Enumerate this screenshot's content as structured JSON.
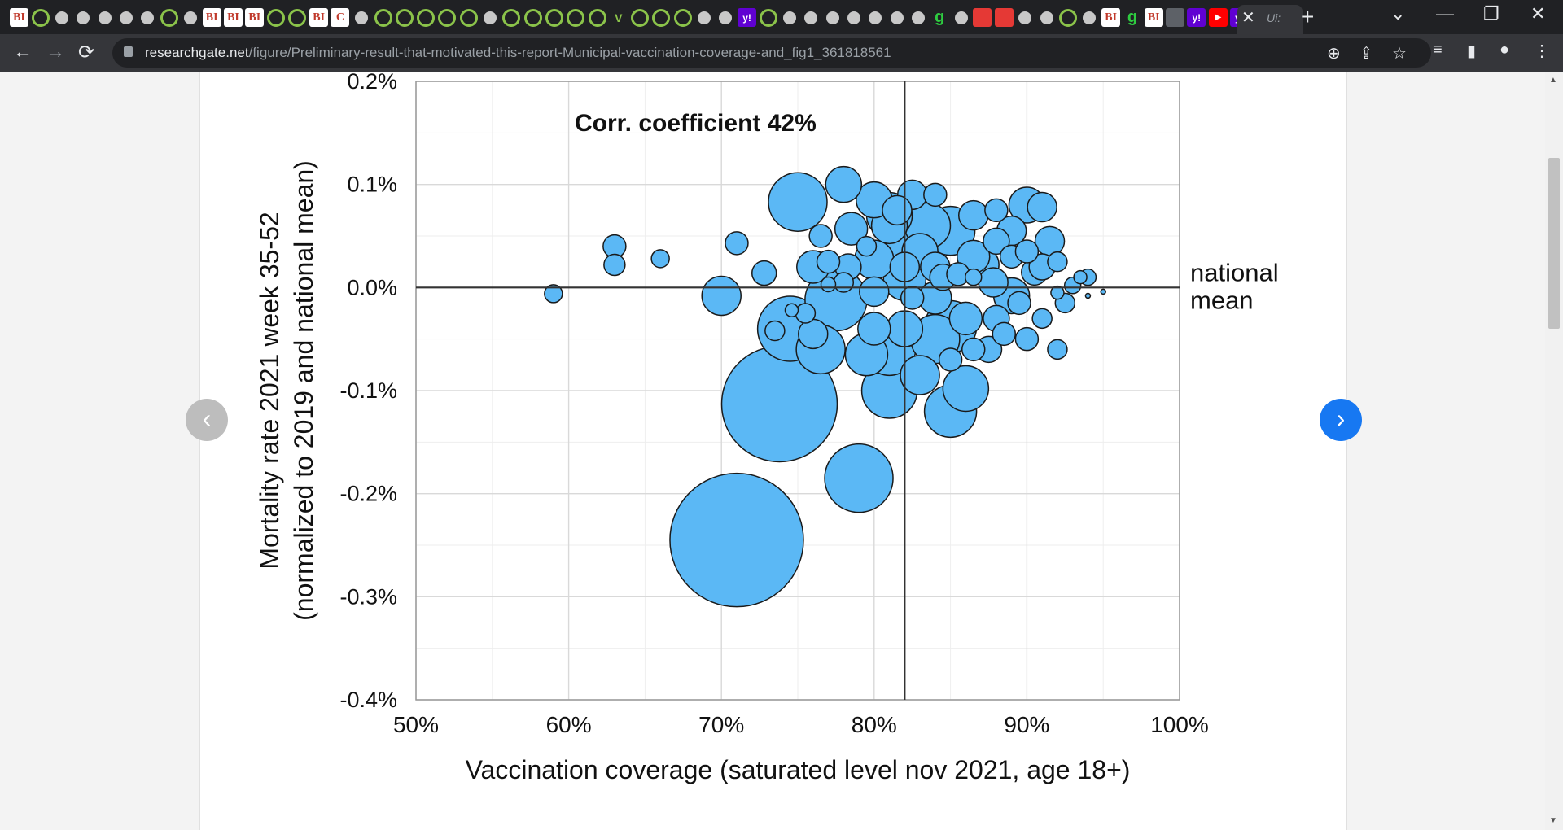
{
  "browser": {
    "url_host": "researchgate.net",
    "url_path": "/figure/Preliminary-result-that-motivated-this-report-Municipal-vaccination-coverage-and_fig1_361818561",
    "active_tab_label": "Ui:",
    "tab_icons": [
      "BI",
      "play",
      "globe",
      "globe",
      "globe",
      "globe",
      "globe",
      "play",
      "globe",
      "BI",
      "BI",
      "BI",
      "play",
      "play",
      "BI",
      "C",
      "globe",
      "play",
      "play",
      "play",
      "play",
      "play",
      "globe",
      "play",
      "play",
      "play",
      "play",
      "play",
      "V",
      "play",
      "play",
      "play",
      "globe",
      "globe",
      "y!",
      "play",
      "globe",
      "globe",
      "globe",
      "globe",
      "globe",
      "globe",
      "globe",
      "g",
      "globe",
      "red",
      "red",
      "globe",
      "globe",
      "play",
      "globe",
      "BI",
      "g",
      "BI",
      "blk",
      "y!",
      "yt",
      "y!"
    ],
    "glyphs": {
      "back": "←",
      "forward": "→",
      "reload": "⟳",
      "newtab": "+",
      "close_tab": "✕",
      "minimize": "—",
      "restore": "❐",
      "close": "✕",
      "tablist": "⌄",
      "zoom": "⊕",
      "share": "⇪",
      "bookmark": "☆",
      "media": "≡",
      "sidepanel": "▮",
      "profile": "●",
      "menu": "⋮"
    }
  },
  "viewer": {
    "prev": "‹",
    "next": "›"
  },
  "colors": {
    "bubble_fill": "#5bb8f5",
    "bubble_stroke": "#1a1a1a",
    "grid_major": "#d9d9d9",
    "grid_minor": "#eeeeee",
    "axis": "#333333",
    "next_button": "#1778f2",
    "prev_button": "#bdbdbd"
  },
  "chart_data": {
    "type": "scatter",
    "title": "",
    "annotation": "Corr. coefficient 42%",
    "xlabel": "Vaccination coverage (saturated level nov 2021, age 18+)",
    "ylabel": [
      "Mortality rate 2021 week 35-52",
      "(normalized to 2019 and national mean)"
    ],
    "xlim": [
      50,
      100
    ],
    "ylim": [
      -0.4,
      0.2
    ],
    "x_ticks": [
      50,
      60,
      70,
      80,
      90,
      100
    ],
    "x_tick_labels": [
      "50%",
      "60%",
      "70%",
      "80%",
      "90%",
      "100%"
    ],
    "y_ticks": [
      0.2,
      0.1,
      0.0,
      -0.1,
      -0.2,
      -0.3,
      -0.4
    ],
    "y_tick_labels": [
      "0.2%",
      "0.1%",
      "0.0%",
      "-0.1%",
      "-0.2%",
      "-0.3%",
      "-0.4%"
    ],
    "reference_lines": {
      "vertical_x": 82,
      "horizontal_y": 0.0,
      "horizontal_label": [
        "national",
        "mean"
      ]
    },
    "grid": true,
    "size_meaning": "relative municipality size (bubble radius, arbitrary units)",
    "points": [
      {
        "x": 71,
        "y": -0.245,
        "s": 82
      },
      {
        "x": 73.8,
        "y": -0.113,
        "s": 71
      },
      {
        "x": 79,
        "y": -0.185,
        "s": 42
      },
      {
        "x": 75,
        "y": 0.083,
        "s": 36
      },
      {
        "x": 74.5,
        "y": -0.04,
        "s": 40
      },
      {
        "x": 77.5,
        "y": -0.012,
        "s": 38
      },
      {
        "x": 76.5,
        "y": -0.06,
        "s": 30
      },
      {
        "x": 81,
        "y": -0.1,
        "s": 34
      },
      {
        "x": 85,
        "y": -0.12,
        "s": 32
      },
      {
        "x": 84,
        "y": -0.05,
        "s": 30
      },
      {
        "x": 82,
        "y": 0.04,
        "s": 32
      },
      {
        "x": 83.5,
        "y": 0.06,
        "s": 28
      },
      {
        "x": 85,
        "y": 0.055,
        "s": 30
      },
      {
        "x": 81,
        "y": 0.06,
        "s": 22
      },
      {
        "x": 80,
        "y": 0.085,
        "s": 22
      },
      {
        "x": 81,
        "y": 0.07,
        "s": 28
      },
      {
        "x": 78,
        "y": 0.1,
        "s": 22
      },
      {
        "x": 85,
        "y": -0.038,
        "s": 32
      },
      {
        "x": 86,
        "y": -0.098,
        "s": 28
      },
      {
        "x": 81,
        "y": -0.06,
        "s": 32
      },
      {
        "x": 70,
        "y": -0.008,
        "s": 24
      },
      {
        "x": 71,
        "y": 0.043,
        "s": 14
      },
      {
        "x": 72.8,
        "y": 0.014,
        "s": 15
      },
      {
        "x": 73.5,
        "y": -0.042,
        "s": 12
      },
      {
        "x": 59,
        "y": -0.006,
        "s": 11
      },
      {
        "x": 63,
        "y": 0.04,
        "s": 14
      },
      {
        "x": 63,
        "y": 0.022,
        "s": 13
      },
      {
        "x": 66,
        "y": 0.028,
        "s": 11
      },
      {
        "x": 78.5,
        "y": 0.057,
        "s": 20
      },
      {
        "x": 80,
        "y": 0.027,
        "s": 24
      },
      {
        "x": 82,
        "y": 0.008,
        "s": 26
      },
      {
        "x": 83,
        "y": 0.035,
        "s": 22
      },
      {
        "x": 84,
        "y": 0.02,
        "s": 18
      },
      {
        "x": 85.5,
        "y": 0.013,
        "s": 14
      },
      {
        "x": 86.5,
        "y": 0.03,
        "s": 20
      },
      {
        "x": 87,
        "y": 0.022,
        "s": 22
      },
      {
        "x": 87.8,
        "y": 0.005,
        "s": 18
      },
      {
        "x": 88,
        "y": 0.045,
        "s": 16
      },
      {
        "x": 89,
        "y": 0.055,
        "s": 18
      },
      {
        "x": 90,
        "y": 0.08,
        "s": 22
      },
      {
        "x": 91,
        "y": 0.078,
        "s": 18
      },
      {
        "x": 91.5,
        "y": 0.045,
        "s": 18
      },
      {
        "x": 90.5,
        "y": 0.015,
        "s": 16
      },
      {
        "x": 89,
        "y": -0.008,
        "s": 22
      },
      {
        "x": 88,
        "y": -0.03,
        "s": 16
      },
      {
        "x": 87.5,
        "y": -0.06,
        "s": 16
      },
      {
        "x": 90,
        "y": -0.05,
        "s": 14
      },
      {
        "x": 91,
        "y": -0.03,
        "s": 12
      },
      {
        "x": 92,
        "y": -0.06,
        "s": 12
      },
      {
        "x": 92,
        "y": -0.005,
        "s": 8
      },
      {
        "x": 93,
        "y": 0.002,
        "s": 10
      },
      {
        "x": 93.5,
        "y": 0.01,
        "s": 8
      },
      {
        "x": 94,
        "y": 0.01,
        "s": 10
      },
      {
        "x": 94,
        "y": -0.008,
        "s": 3
      },
      {
        "x": 95,
        "y": -0.004,
        "s": 3
      },
      {
        "x": 86,
        "y": -0.03,
        "s": 20
      },
      {
        "x": 84,
        "y": -0.01,
        "s": 20
      },
      {
        "x": 82,
        "y": -0.04,
        "s": 22
      },
      {
        "x": 80,
        "y": -0.04,
        "s": 20
      },
      {
        "x": 83,
        "y": -0.085,
        "s": 24
      },
      {
        "x": 79.5,
        "y": -0.065,
        "s": 26
      },
      {
        "x": 76,
        "y": -0.045,
        "s": 18
      },
      {
        "x": 76,
        "y": 0.02,
        "s": 20
      },
      {
        "x": 76.5,
        "y": 0.05,
        "s": 14
      },
      {
        "x": 77,
        "y": 0.025,
        "s": 14
      },
      {
        "x": 78,
        "y": 0.005,
        "s": 12
      },
      {
        "x": 78.3,
        "y": 0.02,
        "s": 16
      },
      {
        "x": 79.5,
        "y": 0.04,
        "s": 12
      },
      {
        "x": 80,
        "y": -0.004,
        "s": 18
      },
      {
        "x": 82,
        "y": 0.02,
        "s": 18
      },
      {
        "x": 82.5,
        "y": -0.01,
        "s": 14
      },
      {
        "x": 84.5,
        "y": 0.01,
        "s": 16
      },
      {
        "x": 86.5,
        "y": 0.01,
        "s": 10
      },
      {
        "x": 84,
        "y": 0.09,
        "s": 14
      },
      {
        "x": 82.5,
        "y": 0.09,
        "s": 18
      },
      {
        "x": 81.5,
        "y": 0.075,
        "s": 18
      },
      {
        "x": 86.5,
        "y": 0.07,
        "s": 18
      },
      {
        "x": 88,
        "y": 0.075,
        "s": 14
      },
      {
        "x": 89,
        "y": 0.03,
        "s": 14
      },
      {
        "x": 90,
        "y": 0.035,
        "s": 14
      },
      {
        "x": 91,
        "y": 0.02,
        "s": 16
      },
      {
        "x": 92,
        "y": 0.025,
        "s": 12
      },
      {
        "x": 92.5,
        "y": -0.015,
        "s": 12
      },
      {
        "x": 89.5,
        "y": -0.015,
        "s": 14
      },
      {
        "x": 88.5,
        "y": -0.045,
        "s": 14
      },
      {
        "x": 86.5,
        "y": -0.06,
        "s": 14
      },
      {
        "x": 85,
        "y": -0.07,
        "s": 14
      },
      {
        "x": 75.5,
        "y": -0.025,
        "s": 12
      },
      {
        "x": 74.6,
        "y": -0.022,
        "s": 8
      },
      {
        "x": 77,
        "y": 0.003,
        "s": 9
      }
    ]
  }
}
